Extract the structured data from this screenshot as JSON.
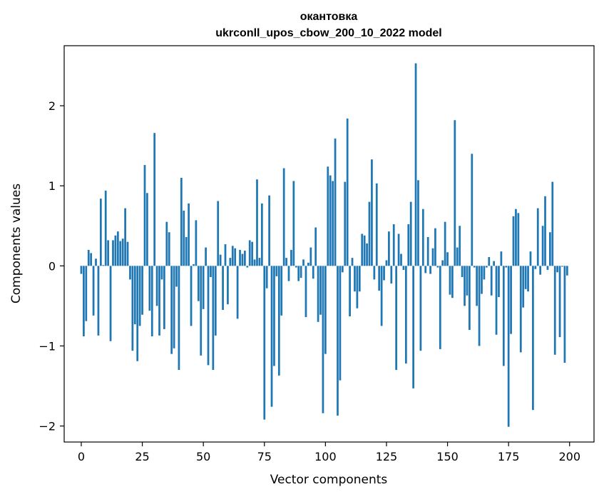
{
  "chart_data": {
    "type": "bar",
    "title_line1": "окантовка",
    "title_line2": "ukrconll_upos_cbow_200_10_2022 model",
    "xlabel": "Vector components",
    "ylabel": "Components values",
    "xlim": [
      -7,
      210
    ],
    "ylim": [
      -2.2,
      2.75
    ],
    "xticks": [
      0,
      25,
      50,
      75,
      100,
      125,
      150,
      175,
      200
    ],
    "yticks": [
      -2,
      -1,
      0,
      1,
      2
    ],
    "ytick_labels": [
      "−2",
      "−1",
      "0",
      "1",
      "2"
    ],
    "bar_color": "#1f77b4",
    "x": [
      0,
      1,
      2,
      3,
      4,
      5,
      6,
      7,
      8,
      9,
      10,
      11,
      12,
      13,
      14,
      15,
      16,
      17,
      18,
      19,
      20,
      21,
      22,
      23,
      24,
      25,
      26,
      27,
      28,
      29,
      30,
      31,
      32,
      33,
      34,
      35,
      36,
      37,
      38,
      39,
      40,
      41,
      42,
      43,
      44,
      45,
      46,
      47,
      48,
      49,
      50,
      51,
      52,
      53,
      54,
      55,
      56,
      57,
      58,
      59,
      60,
      61,
      62,
      63,
      64,
      65,
      66,
      67,
      68,
      69,
      70,
      71,
      72,
      73,
      74,
      75,
      76,
      77,
      78,
      79,
      80,
      81,
      82,
      83,
      84,
      85,
      86,
      87,
      88,
      89,
      90,
      91,
      92,
      93,
      94,
      95,
      96,
      97,
      98,
      99,
      100,
      101,
      102,
      103,
      104,
      105,
      106,
      107,
      108,
      109,
      110,
      111,
      112,
      113,
      114,
      115,
      116,
      117,
      118,
      119,
      120,
      121,
      122,
      123,
      124,
      125,
      126,
      127,
      128,
      129,
      130,
      131,
      132,
      133,
      134,
      135,
      136,
      137,
      138,
      139,
      140,
      141,
      142,
      143,
      144,
      145,
      146,
      147,
      148,
      149,
      150,
      151,
      152,
      153,
      154,
      155,
      156,
      157,
      158,
      159,
      160,
      161,
      162,
      163,
      164,
      165,
      166,
      167,
      168,
      169,
      170,
      171,
      172,
      173,
      174,
      175,
      176,
      177,
      178,
      179,
      180,
      181,
      182,
      183,
      184,
      185,
      186,
      187,
      188,
      189,
      190,
      191,
      192,
      193,
      194,
      195,
      196,
      197,
      198,
      199
    ],
    "values": [
      -0.1,
      -0.88,
      -0.69,
      0.2,
      0.16,
      -0.62,
      0.09,
      -0.87,
      0.84,
      0.01,
      0.94,
      0.32,
      -0.94,
      0.32,
      0.38,
      0.43,
      0.31,
      0.34,
      0.72,
      0.3,
      -0.17,
      -1.06,
      -0.73,
      -1.19,
      -0.75,
      -0.61,
      1.26,
      0.91,
      -0.56,
      -0.88,
      1.66,
      -0.5,
      -0.87,
      -0.17,
      -0.79,
      0.55,
      0.42,
      -1.1,
      -1.03,
      -0.26,
      -1.3,
      1.1,
      0.69,
      0.36,
      0.78,
      -0.75,
      0.02,
      0.57,
      -0.44,
      -1.12,
      -0.54,
      0.23,
      -1.24,
      -0.14,
      -1.3,
      -0.87,
      0.81,
      0.14,
      -0.55,
      0.27,
      -0.48,
      0.1,
      0.25,
      0.22,
      -0.66,
      0.2,
      0.15,
      0.19,
      -0.02,
      0.32,
      0.3,
      0.08,
      1.08,
      0.1,
      0.78,
      -1.92,
      -0.28,
      0.88,
      -1.76,
      -1.25,
      -0.13,
      -1.37,
      -0.62,
      1.22,
      0.1,
      -0.19,
      0.2,
      1.06,
      -0.02,
      -0.19,
      -0.15,
      0.08,
      -0.64,
      0.04,
      0.23,
      -0.16,
      0.48,
      -0.7,
      -0.61,
      -1.84,
      -1.1,
      1.24,
      1.13,
      1.06,
      1.59,
      -1.87,
      -1.43,
      -0.08,
      1.05,
      1.84,
      -0.63,
      0.1,
      -0.32,
      -0.53,
      -0.32,
      0.4,
      0.38,
      0.28,
      0.8,
      1.33,
      -0.17,
      1.03,
      -0.31,
      -0.75,
      -0.18,
      0.07,
      0.43,
      -0.22,
      0.52,
      -1.3,
      0.4,
      0.15,
      -0.05,
      -1.22,
      0.52,
      0.8,
      -1.53,
      2.53,
      1.07,
      -1.06,
      0.71,
      -0.09,
      0.36,
      -0.1,
      0.22,
      0.47,
      -0.02,
      -1.04,
      0.07,
      0.55,
      0.17,
      -0.36,
      -0.4,
      1.82,
      0.23,
      0.5,
      -0.14,
      -0.5,
      -0.37,
      -0.8,
      1.4,
      -0.02,
      -0.5,
      -1.0,
      -0.35,
      -0.17,
      -0.02,
      0.11,
      -0.37,
      0.06,
      -0.86,
      -0.39,
      0.18,
      -1.25,
      -0.02,
      -2.01,
      -0.85,
      0.62,
      0.71,
      0.66,
      -1.08,
      -0.52,
      -0.29,
      -0.32,
      0.18,
      -1.8,
      -0.04,
      0.72,
      -0.11,
      0.5,
      0.87,
      -0.05,
      0.42,
      1.05,
      -1.11,
      -0.08,
      -0.89,
      -0.01,
      -1.21,
      -0.12
    ]
  }
}
